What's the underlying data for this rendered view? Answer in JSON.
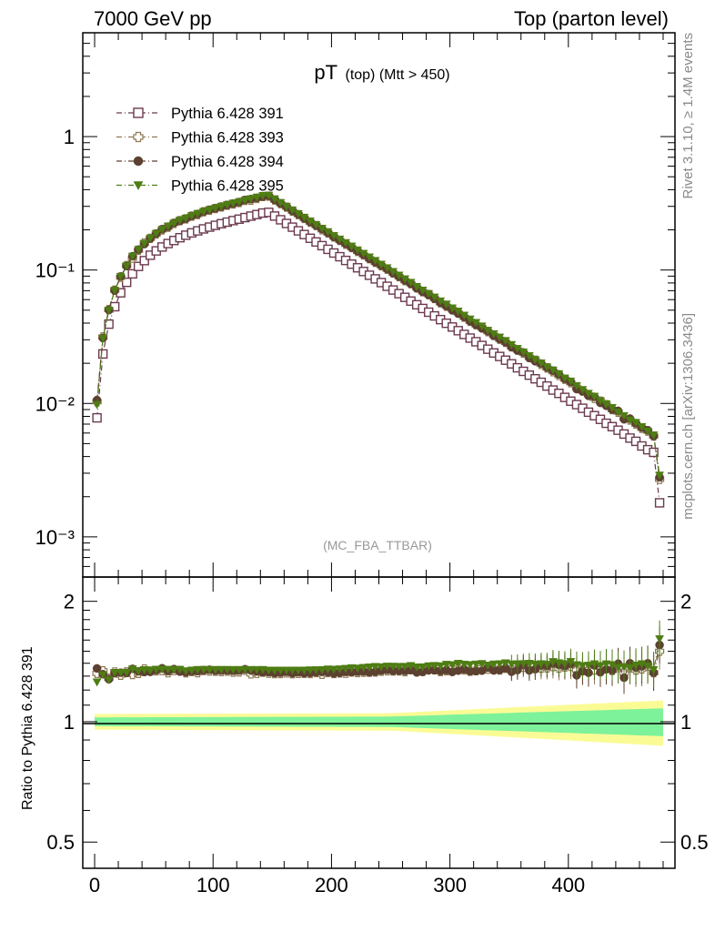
{
  "header": {
    "left": "7000 GeV pp",
    "right": "Top (parton level)"
  },
  "side_text": {
    "rivet": "Rivet 3.1.10, ≥ 1.4M events",
    "mcplots": "mcplots.cern.ch [arXiv:1306.3436]"
  },
  "colors": {
    "pythia_391": "#6b3a4f",
    "pythia_393": "#8f7a55",
    "pythia_394": "#5c4030",
    "pythia_395": "#4e7d14",
    "band_inner": "#7df29a",
    "band_outer": "#fbfb96"
  },
  "chart_data": [
    {
      "type": "scatter",
      "title_main": "pT",
      "title_sub": "(top) (Mtt > 450)",
      "watermark": "(MC_FBA_TTBAR)",
      "xlabel": "",
      "ylabel": "",
      "yscale": "log",
      "xlim": [
        -10,
        490
      ],
      "ylim": [
        0.0005,
        6
      ],
      "y_tick_labels": [
        "10⁻³",
        "10⁻²",
        "10⁻¹",
        "1"
      ],
      "legend_position": "top-left",
      "x": [
        2,
        7,
        12,
        17,
        22,
        27,
        32,
        37,
        42,
        47,
        52,
        57,
        62,
        67,
        72,
        77,
        82,
        87,
        92,
        97,
        102,
        107,
        112,
        117,
        122,
        127,
        132,
        137,
        142,
        147,
        152,
        157,
        162,
        167,
        172,
        177,
        182,
        187,
        192,
        197,
        202,
        207,
        212,
        217,
        222,
        227,
        232,
        237,
        242,
        247,
        252,
        257,
        262,
        267,
        272,
        277,
        282,
        287,
        292,
        297,
        302,
        307,
        312,
        317,
        322,
        327,
        332,
        337,
        342,
        347,
        352,
        357,
        362,
        367,
        372,
        377,
        382,
        387,
        392,
        397,
        402,
        407,
        412,
        417,
        422,
        427,
        432,
        437,
        442,
        447,
        452,
        457,
        462,
        467,
        472,
        477
      ],
      "series": [
        {
          "name": "Pythia 6.428 391",
          "marker": "open-square",
          "values": [
            0.0078,
            0.0235,
            0.0393,
            0.0531,
            0.0675,
            0.0809,
            0.0936,
            0.1064,
            0.1176,
            0.1291,
            0.1391,
            0.1488,
            0.1579,
            0.1664,
            0.1746,
            0.1824,
            0.1898,
            0.1965,
            0.2034,
            0.2096,
            0.2161,
            0.2223,
            0.2285,
            0.2346,
            0.2406,
            0.2472,
            0.2536,
            0.2604,
            0.2673,
            0.2704,
            0.2537,
            0.238,
            0.2233,
            0.2095,
            0.1966,
            0.1844,
            0.173,
            0.1623,
            0.1523,
            0.1429,
            0.1341,
            0.1258,
            0.118,
            0.1107,
            0.1039,
            0.0975,
            0.0914,
            0.0858,
            0.0805,
            0.0755,
            0.0708,
            0.0665,
            0.0624,
            0.0585,
            0.0549,
            0.0515,
            0.0483,
            0.0453,
            0.0425,
            0.0399,
            0.0374,
            0.0351,
            0.0329,
            0.0309,
            0.029,
            0.0272,
            0.0255,
            0.0239,
            0.0225,
            0.0211,
            0.0198,
            0.0185,
            0.0174,
            0.0163,
            0.0153,
            0.0144,
            0.0135,
            0.0126,
            0.0119,
            0.0111,
            0.0104,
            0.0098,
            0.0092,
            0.0086,
            0.0081,
            0.0076,
            0.0071,
            0.0067,
            0.0063,
            0.0059,
            0.0055,
            0.0052,
            0.0048,
            0.0045,
            0.0043,
            0.0018
          ]
        },
        {
          "name": "Pythia 6.428 393",
          "marker": "open-cross",
          "values": [
            0.0103,
            0.0315,
            0.0505,
            0.0707,
            0.0882,
            0.1078,
            0.1228,
            0.1405,
            0.1593,
            0.1729,
            0.1863,
            0.1997,
            0.2093,
            0.2233,
            0.2346,
            0.2417,
            0.2533,
            0.2605,
            0.2731,
            0.2806,
            0.289,
            0.2966,
            0.3056,
            0.3121,
            0.3204,
            0.3324,
            0.3339,
            0.3438,
            0.3555,
            0.3574,
            0.3345,
            0.3141,
            0.2956,
            0.2761,
            0.2596,
            0.2436,
            0.2283,
            0.2153,
            0.2001,
            0.1895,
            0.1769,
            0.1666,
            0.1559,
            0.1474,
            0.1378,
            0.1296,
            0.1216,
            0.1142,
            0.1076,
            0.1012,
            0.0948,
            0.0891,
            0.0832,
            0.0791,
            0.0737,
            0.0688,
            0.0655,
            0.0611,
            0.0567,
            0.0535,
            0.0509,
            0.0478,
            0.0443,
            0.0413,
            0.0389,
            0.0371,
            0.0345,
            0.0324,
            0.0303,
            0.0287,
            0.0266,
            0.0252,
            0.0238,
            0.0222,
            0.0211,
            0.0196,
            0.0184,
            0.0173,
            0.0162,
            0.0152,
            0.0143,
            0.0132,
            0.0124,
            0.0116,
            0.0109,
            0.0104,
            0.0098,
            0.009,
            0.0086,
            0.0078,
            0.0075,
            0.007,
            0.0065,
            0.0062,
            0.0057,
            0.0027
          ]
        },
        {
          "name": "Pythia 6.428 394",
          "marker": "filled-circle",
          "values": [
            0.0106,
            0.0309,
            0.0502,
            0.0702,
            0.0895,
            0.1071,
            0.1269,
            0.1422,
            0.1565,
            0.172,
            0.1872,
            0.2024,
            0.2114,
            0.2253,
            0.2329,
            0.2425,
            0.254,
            0.263,
            0.2736,
            0.2827,
            0.2901,
            0.2986,
            0.307,
            0.3146,
            0.3232,
            0.3344,
            0.3405,
            0.3477,
            0.3554,
            0.3597,
            0.3357,
            0.3157,
            0.2977,
            0.277,
            0.2615,
            0.2437,
            0.2292,
            0.2159,
            0.2029,
            0.1901,
            0.1771,
            0.1667,
            0.1572,
            0.1472,
            0.1386,
            0.1303,
            0.1214,
            0.1144,
            0.1081,
            0.1018,
            0.0949,
            0.0892,
            0.0836,
            0.0787,
            0.0729,
            0.0686,
            0.0649,
            0.0609,
            0.0569,
            0.0537,
            0.0498,
            0.0471,
            0.0445,
            0.0413,
            0.0388,
            0.0365,
            0.0348,
            0.0321,
            0.0303,
            0.0287,
            0.0264,
            0.0249,
            0.0241,
            0.0219,
            0.0207,
            0.0199,
            0.0186,
            0.0176,
            0.0165,
            0.0153,
            0.0145,
            0.0128,
            0.0123,
            0.0114,
            0.0112,
            0.0101,
            0.0096,
            0.009,
            0.0088,
            0.0076,
            0.0077,
            0.0071,
            0.0066,
            0.0063,
            0.0057,
            0.0028
          ]
        },
        {
          "name": "Pythia 6.428 395",
          "marker": "filled-triangle-down",
          "values": [
            0.0098,
            0.0308,
            0.05,
            0.0705,
            0.0896,
            0.1075,
            0.1268,
            0.1425,
            0.1586,
            0.1735,
            0.1881,
            0.2014,
            0.2134,
            0.2247,
            0.2359,
            0.2444,
            0.2554,
            0.2653,
            0.2746,
            0.2829,
            0.2918,
            0.3002,
            0.3085,
            0.3167,
            0.3248,
            0.3337,
            0.3423,
            0.3515,
            0.3609,
            0.3637,
            0.3412,
            0.3201,
            0.3003,
            0.2818,
            0.2644,
            0.2481,
            0.2331,
            0.2188,
            0.2054,
            0.1935,
            0.1813,
            0.1704,
            0.1603,
            0.151,
            0.1414,
            0.1332,
            0.1252,
            0.1179,
            0.1104,
            0.1039,
            0.0974,
            0.0914,
            0.0858,
            0.0808,
            0.0752,
            0.0706,
            0.0666,
            0.0626,
            0.0586,
            0.0555,
            0.0519,
            0.0491,
            0.0458,
            0.0429,
            0.0404,
            0.038,
            0.0353,
            0.0333,
            0.0314,
            0.0296,
            0.0276,
            0.0258,
            0.0243,
            0.0228,
            0.0213,
            0.0201,
            0.0188,
            0.0178,
            0.0167,
            0.0155,
            0.0147,
            0.0136,
            0.0127,
            0.0119,
            0.0113,
            0.0105,
            0.0099,
            0.0093,
            0.0086,
            0.0081,
            0.0075,
            0.0072,
            0.0067,
            0.0062,
            0.0058,
            0.0029
          ]
        }
      ]
    },
    {
      "type": "scatter",
      "xlabel": "",
      "ylabel": "Ratio to Pythia 6.428 391",
      "yscale": "log",
      "xlim": [
        -10,
        490
      ],
      "ylim": [
        0.43,
        2.3
      ],
      "y_tick_labels": [
        "0.5",
        "1",
        "2"
      ],
      "x_tick_labels": [
        "0",
        "100",
        "200",
        "300",
        "400"
      ],
      "reference_line": 1,
      "band_half_width_inner": {
        "x": [
          0,
          250,
          480
        ],
        "values": [
          0.025,
          0.03,
          0.08
        ]
      },
      "band_half_width_outer": {
        "x": [
          0,
          250,
          480
        ],
        "values": [
          0.045,
          0.05,
          0.13
        ]
      }
    }
  ]
}
